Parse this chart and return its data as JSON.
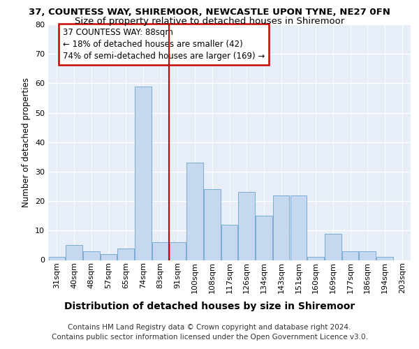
{
  "title": "37, COUNTESS WAY, SHIREMOOR, NEWCASTLE UPON TYNE, NE27 0FN",
  "subtitle": "Size of property relative to detached houses in Shiremoor",
  "xlabel": "Distribution of detached houses by size in Shiremoor",
  "ylabel": "Number of detached properties",
  "categories": [
    "31sqm",
    "40sqm",
    "48sqm",
    "57sqm",
    "65sqm",
    "74sqm",
    "83sqm",
    "91sqm",
    "100sqm",
    "108sqm",
    "117sqm",
    "126sqm",
    "134sqm",
    "143sqm",
    "151sqm",
    "160sqm",
    "169sqm",
    "177sqm",
    "186sqm",
    "194sqm",
    "203sqm"
  ],
  "values": [
    1,
    5,
    3,
    2,
    4,
    59,
    6,
    6,
    33,
    24,
    12,
    23,
    15,
    22,
    22,
    1,
    9,
    3,
    3,
    1,
    0
  ],
  "bar_color": "#c5d8f0",
  "bar_edge_color": "#7aadd4",
  "annotation_title": "37 COUNTESS WAY: 88sqm",
  "annotation_line1": "← 18% of detached houses are smaller (42)",
  "annotation_line2": "74% of semi-detached houses are larger (169) →",
  "annotation_box_color": "#ffffff",
  "annotation_box_edge": "#cc0000",
  "vline_color": "#cc0000",
  "vline_x": 6.5,
  "bg_color": "#ffffff",
  "plot_bg_color": "#e8eef8",
  "ylim": [
    0,
    80
  ],
  "yticks": [
    0,
    10,
    20,
    30,
    40,
    50,
    60,
    70,
    80
  ],
  "footer": "Contains HM Land Registry data © Crown copyright and database right 2024.\nContains public sector information licensed under the Open Government Licence v3.0.",
  "title_fontsize": 9.5,
  "subtitle_fontsize": 9.5,
  "xlabel_fontsize": 10,
  "ylabel_fontsize": 8.5,
  "tick_fontsize": 8,
  "footer_fontsize": 7.5,
  "ann_fontsize": 8.5
}
